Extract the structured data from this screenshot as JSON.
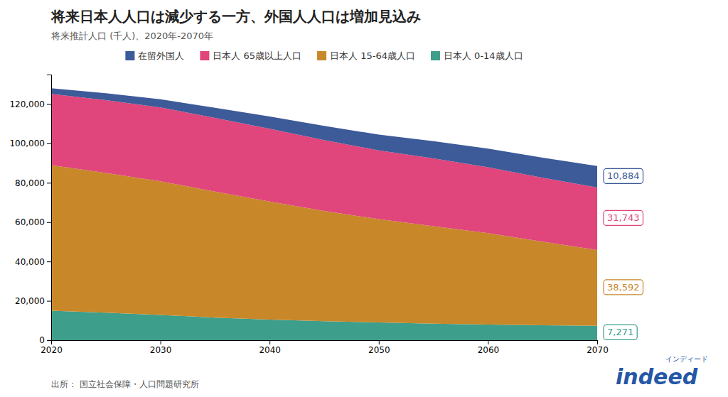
{
  "chart_data": {
    "type": "area",
    "stacked": true,
    "title": "将来日本人人口は減少する一方、外国人人口は増加見込み",
    "subtitle": "将来推計人口 (千人)、2020年-2070年",
    "source": "出所： 国立社会保障・人口問題研究所",
    "annotations": [
      "indeed",
      "インディード"
    ],
    "x": [
      2020,
      2025,
      2030,
      2035,
      2040,
      2045,
      2050,
      2055,
      2060,
      2065,
      2070
    ],
    "series": [
      {
        "name": "日本人 0-14歳人口",
        "color": "#3d9e8c",
        "values": [
          14942,
          14000,
          12800,
          11500,
          10500,
          9700,
          9000,
          8400,
          7900,
          7600,
          7271
        ],
        "value_labels": [
          null,
          null,
          null,
          null,
          null,
          null,
          null,
          null,
          null,
          null,
          "7,271"
        ]
      },
      {
        "name": "日本人 15-64歳人口",
        "color": "#c8882a",
        "values": [
          74058,
          71000,
          68000,
          64000,
          60000,
          56000,
          52500,
          49500,
          46500,
          42500,
          38592
        ],
        "value_labels": [
          null,
          null,
          null,
          null,
          null,
          null,
          null,
          null,
          null,
          null,
          "38,592"
        ]
      },
      {
        "name": "日本人 65歳以上人口",
        "color": "#e0457b",
        "values": [
          36192,
          37000,
          37500,
          37500,
          37000,
          36000,
          35000,
          34500,
          33500,
          32500,
          31743
        ],
        "value_labels": [
          null,
          null,
          null,
          null,
          null,
          null,
          null,
          null,
          null,
          null,
          "31,743"
        ]
      },
      {
        "name": "在留外国人",
        "color": "#3d5a99",
        "values": [
          2887,
          3500,
          4200,
          5100,
          6200,
          7200,
          8000,
          8800,
          9500,
          10200,
          10884
        ],
        "value_labels": [
          null,
          null,
          null,
          null,
          null,
          null,
          null,
          null,
          null,
          null,
          "10,884"
        ]
      }
    ],
    "data_labels": true,
    "xlim": [
      2020,
      2070
    ],
    "xticks": [
      2020,
      2030,
      2040,
      2050,
      2060,
      2070
    ],
    "ylim": [
      0,
      135000
    ],
    "yticks": [
      0,
      {
        "value": 20000,
        "label": "20,000"
      },
      {
        "value": 40000,
        "label": "40,000"
      },
      {
        "value": 60000,
        "label": "60,000"
      },
      {
        "value": 80000,
        "label": "80,000"
      },
      {
        "value": 100000,
        "label": "100,000"
      },
      {
        "value": 120000,
        "label": "120,000"
      }
    ],
    "grid": false,
    "legend": "top"
  }
}
